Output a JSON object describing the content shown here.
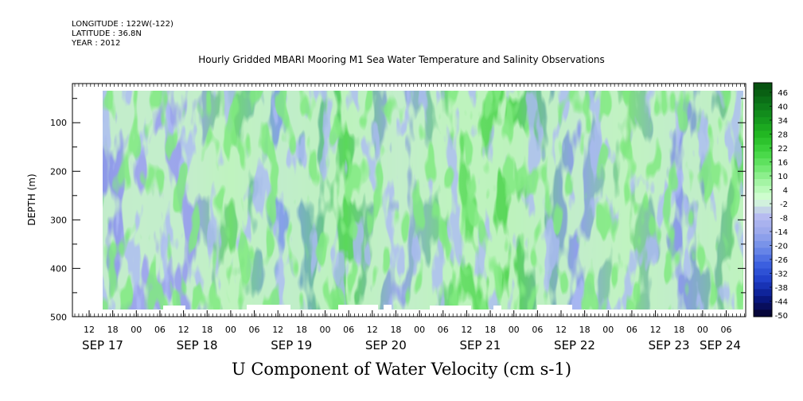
{
  "header": {
    "longitude": "LONGITUDE : 122W(-122)",
    "latitude": "LATITUDE : 36.8N",
    "year": "YEAR : 2012"
  },
  "title": "Hourly Gridded MBARI Mooring M1 Sea Water Temperature and Salinity Observations",
  "chart_data": {
    "type": "heatmap",
    "title": "Hourly Gridded MBARI Mooring M1 Sea Water Temperature and Salinity Observations",
    "xlabel": "U Component of Water Velocity (cm s-1)",
    "ylabel": "DEPTH (m)",
    "y_ticks": [
      "100",
      "200",
      "300",
      "400",
      "500"
    ],
    "ylim": [
      500,
      20
    ],
    "x_hour_ticks": [
      "12",
      "18",
      "00",
      "06",
      "12",
      "18",
      "00",
      "06",
      "12",
      "18",
      "00",
      "06",
      "12",
      "18",
      "00",
      "06",
      "12",
      "18",
      "00",
      "06",
      "12",
      "18",
      "00",
      "06",
      "12",
      "18",
      "00",
      "06"
    ],
    "x_date_labels": [
      "SEP 17",
      "SEP 18",
      "SEP 19",
      "SEP 20",
      "SEP 21",
      "SEP 22",
      "SEP 23",
      "SEP 24"
    ],
    "colorbar_labels": [
      "46",
      "40",
      "34",
      "28",
      "22",
      "16",
      "10",
      "4",
      "-2",
      "-8",
      "-14",
      "-20",
      "-26",
      "-32",
      "-38",
      "-44",
      "-50"
    ],
    "colorbar_range": [
      -50,
      50
    ],
    "colorbar_colors": [
      "#ffffff",
      "#06063a",
      "#0a1a8a",
      "#1e3ec8",
      "#3c60e0",
      "#6f8ce8",
      "#9aa8ec",
      "#b8bcf0",
      "#d8ffd8",
      "#a8f5a8",
      "#6ee86e",
      "#3fd43f",
      "#22b822",
      "#14961e",
      "#0c7418",
      "#065210"
    ],
    "colors": {
      "positive": "#40d040",
      "negative": "#8896e8"
    }
  }
}
